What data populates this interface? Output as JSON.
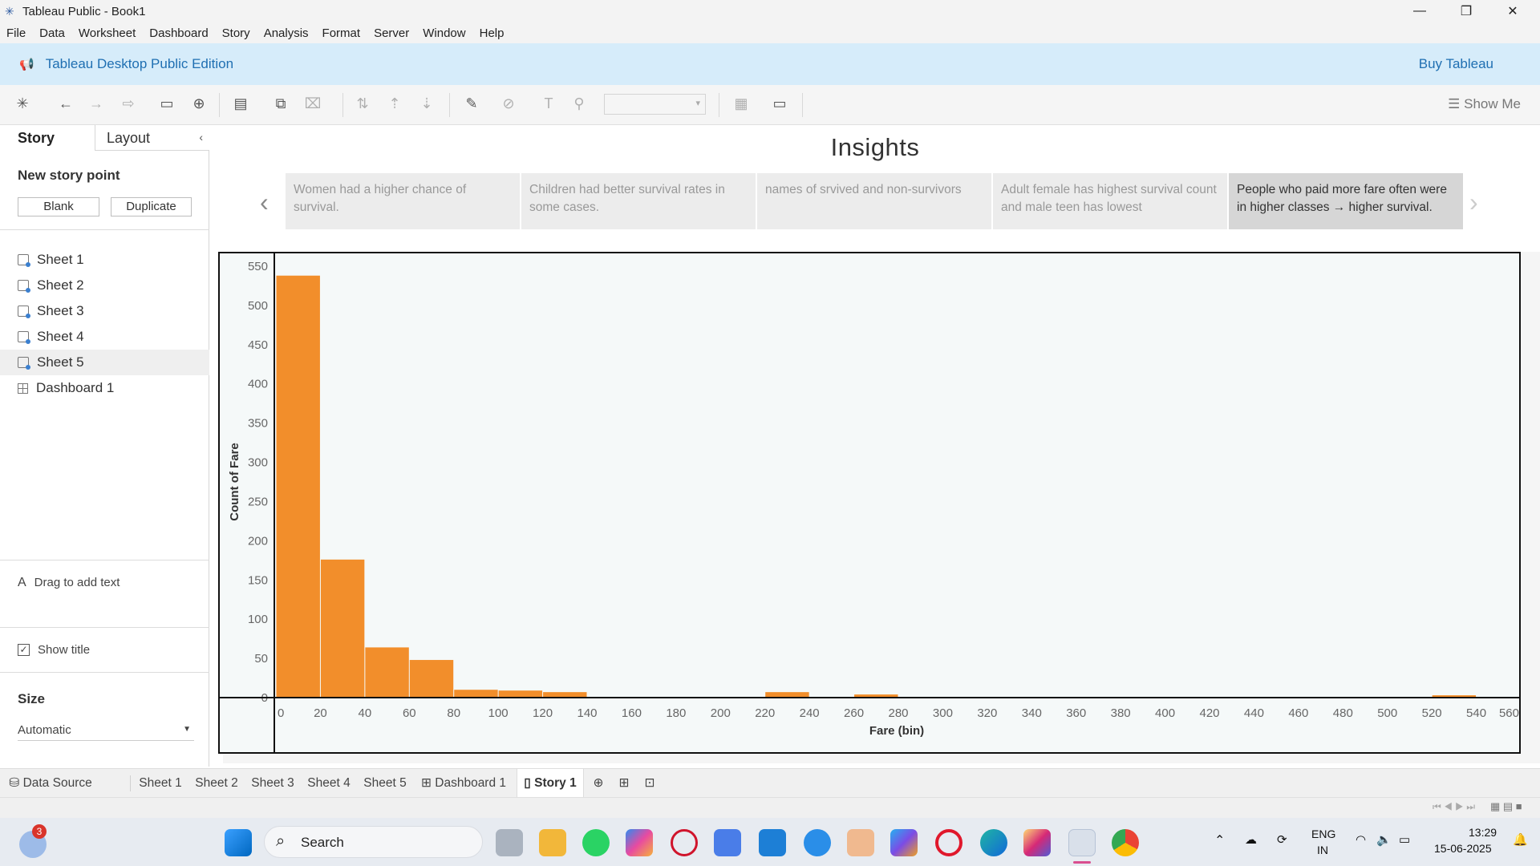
{
  "window": {
    "title": "Tableau Public - Book1"
  },
  "menu": [
    "File",
    "Data",
    "Worksheet",
    "Dashboard",
    "Story",
    "Analysis",
    "Format",
    "Server",
    "Window",
    "Help"
  ],
  "banner": {
    "title": "Tableau Desktop Public Edition",
    "buy_label": "Buy Tableau"
  },
  "toolbar": {
    "show_me_label": "Show Me"
  },
  "left_panel": {
    "tab_story": "Story",
    "tab_layout": "Layout",
    "new_story_point_title": "New story point",
    "blank_label": "Blank",
    "duplicate_label": "Duplicate",
    "sheets": [
      "Sheet 1",
      "Sheet 2",
      "Sheet 3",
      "Sheet 4",
      "Sheet 5",
      "Dashboard 1"
    ],
    "selected_sheet": "Sheet 5",
    "drag_text_label": "Drag to add text",
    "show_title_label": "Show title",
    "show_title_checked": true,
    "size_title": "Size",
    "size_value": "Automatic"
  },
  "story": {
    "title": "Insights",
    "points": [
      {
        "text": "Women had a higher chance of survival."
      },
      {
        "text": "Children had better survival rates in some cases."
      },
      {
        "text": "names of srvived and non-survivors"
      },
      {
        "text": "Adult female has highest survival count and male teen has lowest"
      },
      {
        "text": "People who paid more fare often were in higher classes → higher survival."
      }
    ],
    "active_point": 4
  },
  "chart_data": {
    "type": "bar",
    "subtype": "histogram",
    "xlabel": "Fare (bin)",
    "ylabel": "Count of Fare",
    "bin_width": 20,
    "xlim": [
      0,
      560
    ],
    "ylim": [
      0,
      550
    ],
    "x_ticks": [
      0,
      20,
      40,
      60,
      80,
      100,
      120,
      140,
      160,
      180,
      200,
      220,
      240,
      260,
      280,
      300,
      320,
      340,
      360,
      380,
      400,
      420,
      440,
      460,
      480,
      500,
      520,
      540,
      560
    ],
    "y_ticks": [
      0,
      50,
      100,
      150,
      200,
      250,
      300,
      350,
      400,
      450,
      500,
      550
    ],
    "bins": [
      0,
      20,
      40,
      60,
      80,
      100,
      120,
      140,
      160,
      180,
      200,
      220,
      240,
      260,
      280,
      300,
      320,
      340,
      360,
      380,
      400,
      420,
      440,
      460,
      480,
      500,
      520,
      540
    ],
    "values": [
      538,
      176,
      64,
      48,
      10,
      9,
      7,
      0,
      0,
      0,
      0,
      7,
      0,
      4,
      0,
      0,
      0,
      0,
      0,
      0,
      0,
      0,
      0,
      0,
      0,
      0,
      3,
      0
    ],
    "bar_color": "#f28e2b",
    "grid": false
  },
  "bottom_tabs": {
    "data_source": "Data Source",
    "tabs": [
      "Sheet 1",
      "Sheet 2",
      "Sheet 3",
      "Sheet 4",
      "Sheet 5",
      "Dashboard 1",
      "Story 1"
    ],
    "active": "Story 1"
  },
  "taskbar": {
    "search_label": "Search",
    "weather_badge": "3",
    "lang_1": "ENG",
    "lang_2": "IN",
    "time": "13:29",
    "date": "15-06-2025"
  },
  "colors": {
    "accent": "#1f6fb2",
    "banner_bg": "#d6ecfa",
    "bar": "#f28e2b"
  }
}
